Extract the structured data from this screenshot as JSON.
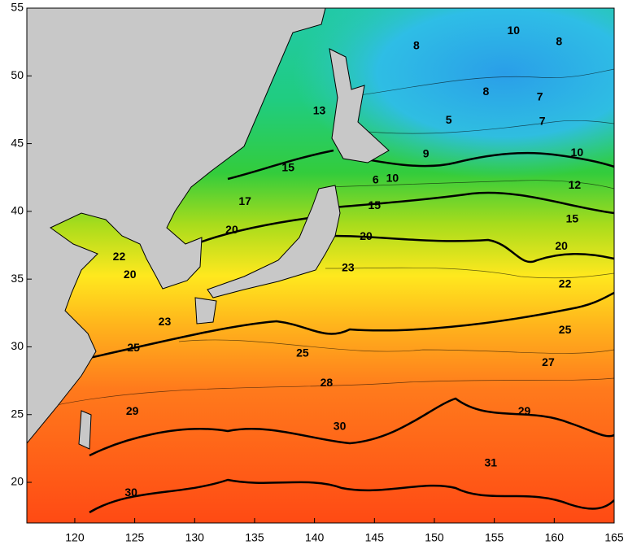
{
  "map": {
    "xlim": [
      116,
      165
    ],
    "ylim": [
      17,
      55
    ],
    "xticks": [
      120,
      125,
      130,
      135,
      140,
      145,
      150,
      155,
      160,
      165
    ],
    "yticks": [
      20,
      25,
      30,
      35,
      40,
      45,
      50,
      55
    ],
    "contour_labels": [
      {
        "value": 8,
        "lon": 148.5,
        "lat": 52.2
      },
      {
        "value": 10,
        "lon": 156.6,
        "lat": 53.3
      },
      {
        "value": 8,
        "lon": 160.4,
        "lat": 52.5
      },
      {
        "value": 13,
        "lon": 140.4,
        "lat": 47.4
      },
      {
        "value": 5,
        "lon": 151.2,
        "lat": 46.7
      },
      {
        "value": 8,
        "lon": 154.3,
        "lat": 48.8
      },
      {
        "value": 7,
        "lon": 158.8,
        "lat": 48.4
      },
      {
        "value": 7,
        "lon": 159.0,
        "lat": 46.6
      },
      {
        "value": 9,
        "lon": 149.3,
        "lat": 44.2
      },
      {
        "value": 10,
        "lon": 161.9,
        "lat": 44.3
      },
      {
        "value": 15,
        "lon": 137.8,
        "lat": 43.2
      },
      {
        "value": 6,
        "lon": 145.1,
        "lat": 42.3
      },
      {
        "value": 10,
        "lon": 146.5,
        "lat": 42.4
      },
      {
        "value": 12,
        "lon": 161.7,
        "lat": 41.9
      },
      {
        "value": 17,
        "lon": 134.2,
        "lat": 40.7
      },
      {
        "value": 15,
        "lon": 145.0,
        "lat": 40.4
      },
      {
        "value": 15,
        "lon": 161.5,
        "lat": 39.4
      },
      {
        "value": 20,
        "lon": 133.1,
        "lat": 38.6
      },
      {
        "value": 20,
        "lon": 144.3,
        "lat": 38.1
      },
      {
        "value": 20,
        "lon": 160.6,
        "lat": 37.4
      },
      {
        "value": 22,
        "lon": 123.7,
        "lat": 36.6
      },
      {
        "value": 23,
        "lon": 142.8,
        "lat": 35.8
      },
      {
        "value": 20,
        "lon": 124.6,
        "lat": 35.3
      },
      {
        "value": 22,
        "lon": 160.9,
        "lat": 34.6
      },
      {
        "value": 23,
        "lon": 127.5,
        "lat": 31.8
      },
      {
        "value": 25,
        "lon": 160.9,
        "lat": 31.2
      },
      {
        "value": 25,
        "lon": 124.9,
        "lat": 29.9
      },
      {
        "value": 25,
        "lon": 139.0,
        "lat": 29.5
      },
      {
        "value": 27,
        "lon": 159.5,
        "lat": 28.8
      },
      {
        "value": 28,
        "lon": 141.0,
        "lat": 27.3
      },
      {
        "value": 29,
        "lon": 124.8,
        "lat": 25.2
      },
      {
        "value": 29,
        "lon": 157.5,
        "lat": 25.2
      },
      {
        "value": 30,
        "lon": 142.1,
        "lat": 24.1
      },
      {
        "value": 31,
        "lon": 154.7,
        "lat": 21.4
      },
      {
        "value": 30,
        "lon": 124.7,
        "lat": 19.2
      }
    ]
  }
}
